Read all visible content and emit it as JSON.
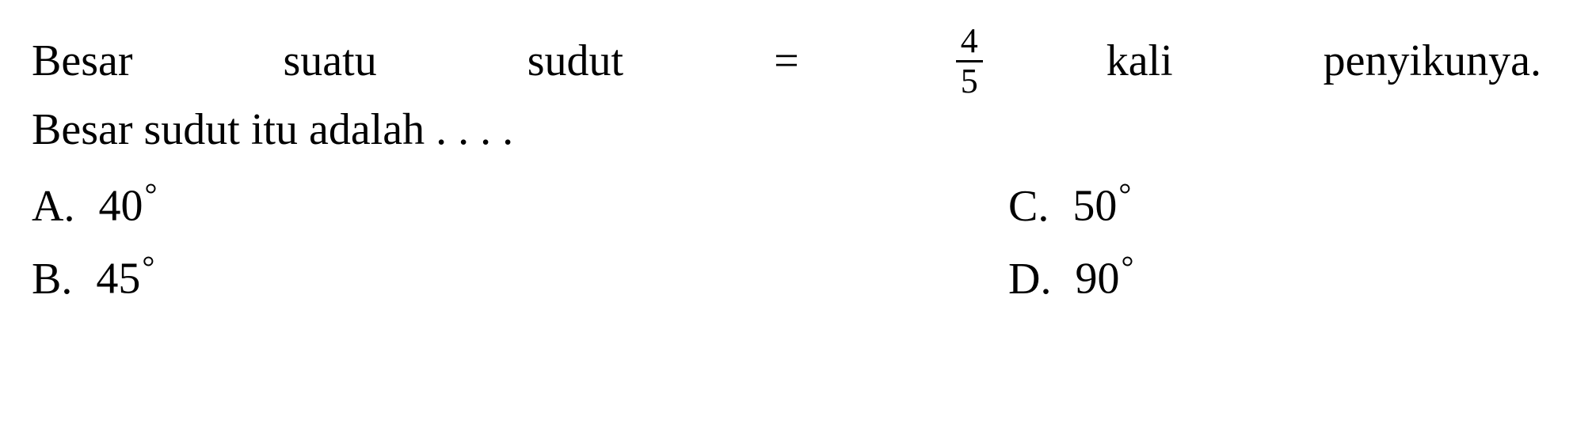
{
  "question": {
    "line1_word1": "Besar",
    "line1_word2": "suatu",
    "line1_word3": "sudut",
    "line1_equals": "=",
    "fraction_top": "4",
    "fraction_bottom": "5",
    "line1_word4": "kali",
    "line1_word5": "penyikunya.",
    "line2": "Besar sudut itu adalah . . . ."
  },
  "options": {
    "a": {
      "letter": "A.",
      "value": "40",
      "degree": "°"
    },
    "b": {
      "letter": "B.",
      "value": "45",
      "degree": "°"
    },
    "c": {
      "letter": "C.",
      "value": "50",
      "degree": "°"
    },
    "d": {
      "letter": "D.",
      "value": "90",
      "degree": "°"
    }
  },
  "styling": {
    "background_color": "#ffffff",
    "text_color": "#000000",
    "font_family": "Times New Roman",
    "font_size_pt": 42,
    "fraction_font_size_pt": 33,
    "degree_font_size_pt": 30
  }
}
